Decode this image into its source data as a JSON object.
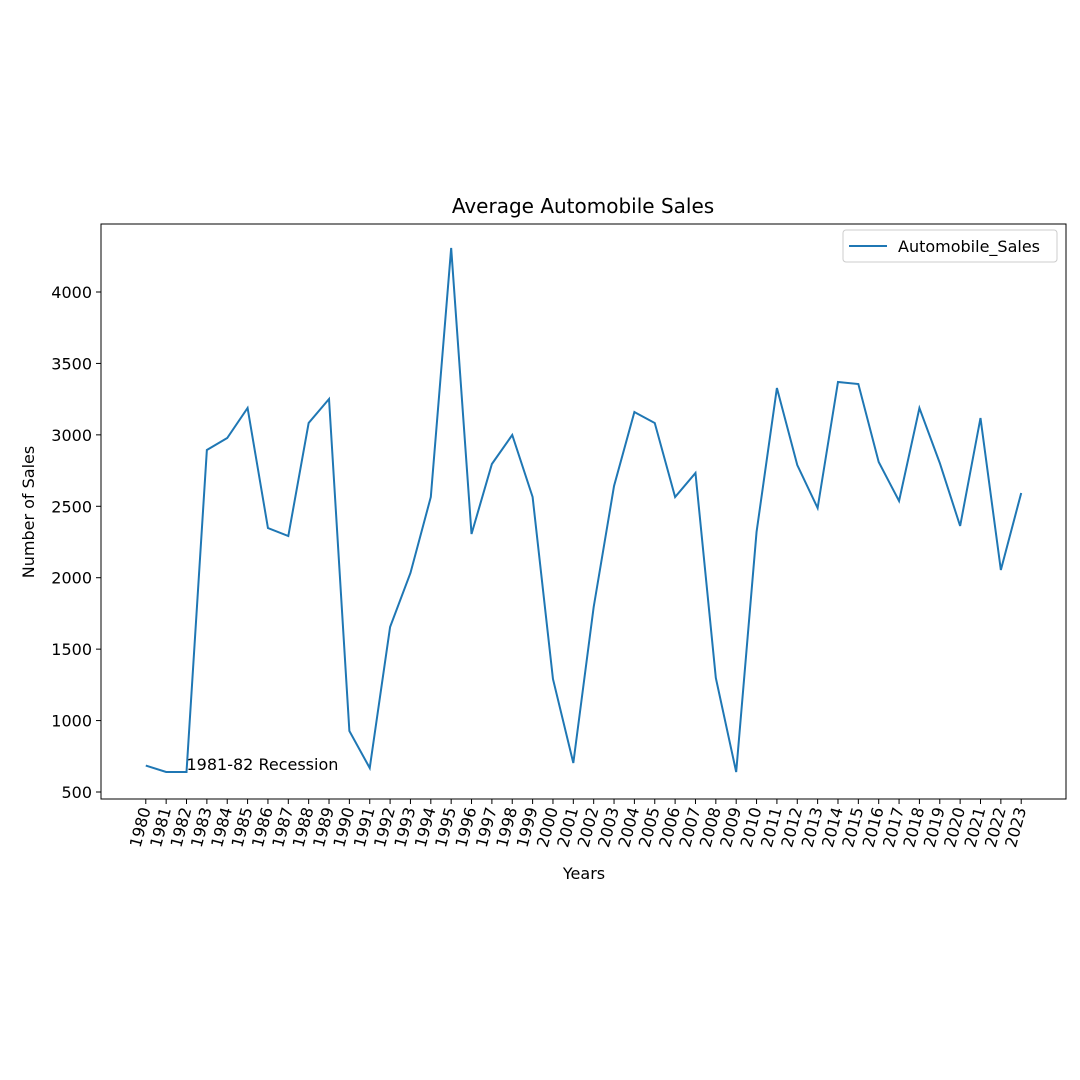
{
  "chart_data": {
    "type": "line",
    "title": "Average Automobile Sales",
    "xlabel": "Years",
    "ylabel": "Number of Sales",
    "x": [
      1980,
      1981,
      1982,
      1983,
      1984,
      1985,
      1986,
      1987,
      1988,
      1989,
      1990,
      1991,
      1992,
      1993,
      1994,
      1995,
      1996,
      1997,
      1998,
      1999,
      2000,
      2001,
      2002,
      2003,
      2004,
      2005,
      2006,
      2007,
      2008,
      2009,
      2010,
      2011,
      2012,
      2013,
      2014,
      2015,
      2016,
      2017,
      2018,
      2019,
      2020,
      2021,
      2022,
      2023
    ],
    "series": [
      {
        "name": "Automobile_Sales",
        "color": "#1f77b4",
        "values": [
          685,
          640,
          640,
          2894,
          2978,
          3188,
          2348,
          2292,
          3083,
          3251,
          927,
          668,
          1655,
          2033,
          2565,
          4308,
          2306,
          2796,
          2999,
          2565,
          1291,
          703,
          1795,
          2642,
          3160,
          3083,
          2565,
          2733,
          1298,
          640,
          2320,
          3328,
          2789,
          2488,
          3370,
          3356,
          2810,
          2537,
          3188,
          2803,
          2362,
          3118,
          2054,
          2593
        ]
      }
    ],
    "annotation": "1981-82 Recession",
    "xlim": [
      1977.8,
      2025.2
    ],
    "xticks": [
      1980,
      1981,
      1982,
      1983,
      1984,
      1985,
      1986,
      1987,
      1988,
      1989,
      1990,
      1991,
      1992,
      1993,
      1994,
      1995,
      1996,
      1997,
      1998,
      1999,
      2000,
      2001,
      2002,
      2003,
      2004,
      2005,
      2006,
      2007,
      2008,
      2009,
      2010,
      2011,
      2012,
      2013,
      2014,
      2015,
      2016,
      2017,
      2018,
      2019,
      2020,
      2021,
      2022,
      2023
    ],
    "ylim": [
      451,
      4476
    ],
    "yticks": [
      500,
      1000,
      1500,
      2000,
      2500,
      3000,
      3500,
      4000
    ],
    "legend": "upper right"
  }
}
